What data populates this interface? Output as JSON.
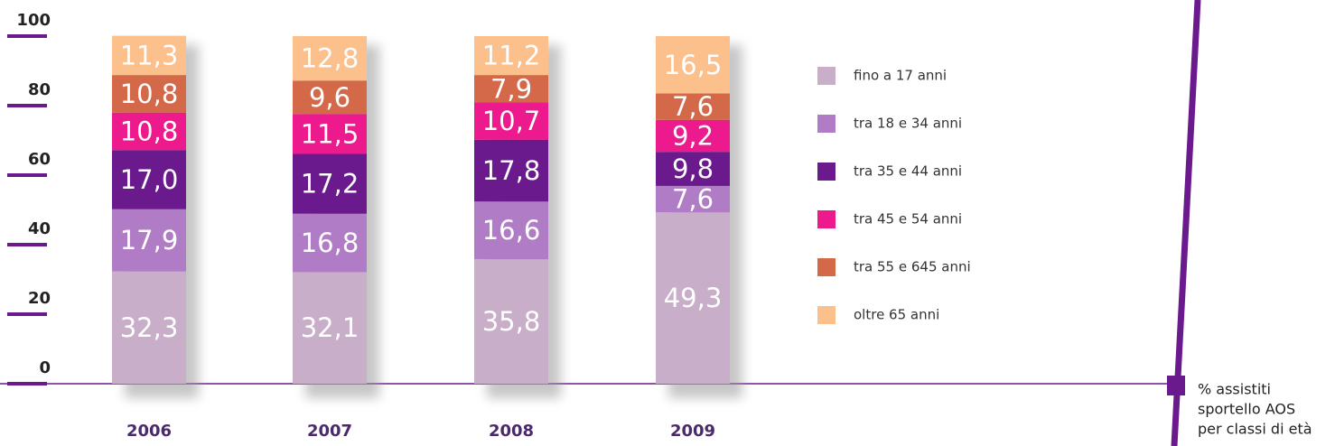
{
  "chart_data": {
    "type": "stacked_bar",
    "categories": [
      "2006",
      "2007",
      "2008",
      "2009"
    ],
    "series": [
      {
        "name": "fino a 17 anni",
        "color": "#c8aec8",
        "values": [
          32.3,
          32.1,
          35.8,
          49.3
        ],
        "value_labels": [
          "32,3",
          "32,1",
          "35,8",
          "49,3"
        ]
      },
      {
        "name": "tra 18 e 34 anni",
        "color": "#b07cc6",
        "values": [
          17.9,
          16.8,
          16.6,
          7.6
        ],
        "value_labels": [
          "17,9",
          "16,8",
          "16,6",
          "7,6"
        ]
      },
      {
        "name": "tra 35 e 44 anni",
        "color": "#6a1a8c",
        "values": [
          17.0,
          17.2,
          17.8,
          9.8
        ],
        "value_labels": [
          "17,0",
          "17,2",
          "17,8",
          "9,8"
        ]
      },
      {
        "name": "tra 45 e 54 anni",
        "color": "#ec1a8c",
        "values": [
          10.8,
          11.5,
          10.7,
          9.2
        ],
        "value_labels": [
          "10,8",
          "11,5",
          "10,7",
          "9,2"
        ]
      },
      {
        "name": "tra 55 e 645 anni",
        "color": "#d4694a",
        "values": [
          10.8,
          9.6,
          7.9,
          7.6
        ],
        "value_labels": [
          "10,8",
          "9,6",
          "7,9",
          "7,6"
        ]
      },
      {
        "name": "oltre 65 anni",
        "color": "#fcc08c",
        "values": [
          11.3,
          12.8,
          11.2,
          16.5
        ],
        "value_labels": [
          "11,3",
          "12,8",
          "11,2",
          "16,5"
        ]
      }
    ],
    "ylim": [
      0,
      100
    ],
    "yticks": [
      0,
      20,
      40,
      60,
      80,
      100
    ],
    "annotation": [
      "% assistiti",
      "sportello AOS",
      "per classi di età"
    ]
  }
}
